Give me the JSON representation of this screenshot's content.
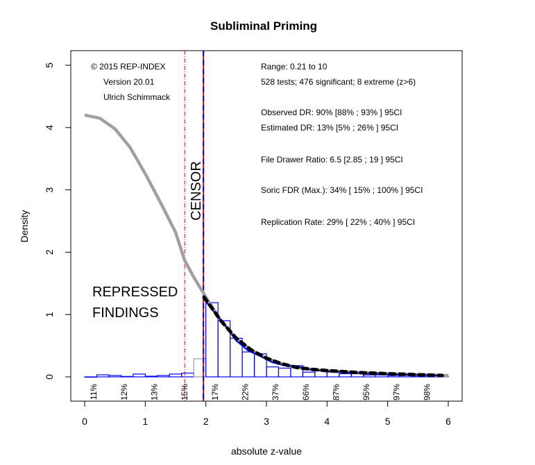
{
  "chart_data": {
    "type": "bar",
    "title": "Subliminal Priming",
    "xlabel": "absolute z-value",
    "ylabel": "Density",
    "xlim": [
      0,
      6
    ],
    "ylim": [
      0,
      5
    ],
    "x_ticks": [
      "0",
      "1",
      "2",
      "3",
      "4",
      "5",
      "6"
    ],
    "y_ticks": [
      "0",
      "1",
      "2",
      "3",
      "4",
      "5"
    ],
    "grid": false,
    "histogram": {
      "bin_width": 0.2,
      "bin_starts": [
        0,
        0.2,
        0.4,
        0.6,
        0.8,
        1.0,
        1.2,
        1.4,
        1.6,
        1.8,
        2.0,
        2.2,
        2.4,
        2.6,
        2.8,
        3.0,
        3.2,
        3.4,
        3.6,
        3.8,
        4.0,
        4.2,
        4.4,
        4.6,
        4.8,
        5.0,
        5.2,
        5.4,
        5.6,
        5.8
      ],
      "density": [
        0.0,
        0.033,
        0.022,
        0.007,
        0.045,
        0.011,
        0.022,
        0.045,
        0.06,
        0.29,
        1.19,
        0.9,
        0.62,
        0.4,
        0.37,
        0.16,
        0.14,
        0.18,
        0.075,
        0.11,
        0.075,
        0.05,
        0.05,
        0.03,
        0.03,
        0.02,
        0.02,
        0.015,
        0.01,
        0.01
      ],
      "color_significant": "#0000ff",
      "color_nonsignificant": "#0000ff",
      "color_z18_20": "#999999"
    },
    "curves": [
      {
        "role": "estimated-total",
        "color": "#a0a0a0",
        "style": "solid",
        "x": [
          0,
          0.25,
          0.5,
          0.75,
          1.0,
          1.25,
          1.5,
          1.65,
          1.8,
          2.0,
          2.25,
          2.5,
          2.75,
          3.0,
          3.25,
          3.5,
          3.75,
          4.0,
          4.5,
          5.0,
          5.5,
          6.0
        ],
        "y": [
          4.2,
          4.15,
          3.98,
          3.68,
          3.26,
          2.8,
          2.32,
          1.87,
          1.6,
          1.28,
          0.9,
          0.62,
          0.43,
          0.3,
          0.21,
          0.15,
          0.12,
          0.1,
          0.07,
          0.05,
          0.035,
          0.02
        ]
      },
      {
        "role": "fitted-significant",
        "color": "#000000",
        "style": "dashed",
        "x": [
          1.97,
          2.25,
          2.5,
          2.75,
          3.0,
          3.25,
          3.5,
          3.75,
          4.0,
          4.5,
          5.0,
          5.5,
          5.9
        ],
        "y": [
          1.28,
          0.9,
          0.62,
          0.43,
          0.3,
          0.21,
          0.15,
          0.12,
          0.1,
          0.07,
          0.05,
          0.035,
          0.022
        ]
      },
      {
        "role": "kernel-density",
        "color": "#0000ff",
        "style": "solid",
        "x": [
          1.97,
          2.1,
          2.3,
          2.5,
          2.7,
          2.9,
          3.1,
          3.3,
          3.5,
          3.7,
          4.0,
          4.5,
          5.0,
          5.5,
          5.9
        ],
        "y": [
          1.25,
          1.08,
          0.85,
          0.58,
          0.42,
          0.33,
          0.23,
          0.18,
          0.17,
          0.12,
          0.09,
          0.06,
          0.04,
          0.03,
          0.02
        ]
      }
    ],
    "vlines": [
      {
        "x": 1.96,
        "color": "#ff0000",
        "style": "solid"
      },
      {
        "x": 1.96,
        "color": "#0000ff",
        "style": "dashed"
      },
      {
        "x": 1.65,
        "color": "#ff0000",
        "style": "dotdash"
      }
    ],
    "power_labels": {
      "x": [
        0.15,
        0.65,
        1.15,
        1.65,
        2.15,
        2.65,
        3.15,
        3.65,
        4.15,
        4.65,
        5.15,
        5.65
      ],
      "labels": [
        "11%",
        "12%",
        "13%",
        "15%",
        "17%",
        "22%",
        "37%",
        "66%",
        "87%",
        "95%",
        "97%",
        "98%"
      ]
    },
    "annotations": {
      "credit": [
        "© 2015 REP-INDEX",
        "Version 20.01",
        "Ulrich Schimmack"
      ],
      "stats": [
        "Range: 0.21 to 10",
        "528 tests; 476 significant; 8 extreme (z>6)",
        "Observed DR: 90% [88% ; 93% ] 95CI",
        "Estimated DR: 13% [5% ; 26% ] 95CI",
        "File Drawer Ratio: 6.5 [2.85 ; 19 ] 95CI",
        "Soric FDR (Max.): 34% [ 15% ; 100% ] 95CI",
        "Replication Rate: 29% [ 22% ; 40% ] 95CI"
      ],
      "censor": "CENSOR",
      "repressed": [
        "REPRESSED",
        "FINDINGS"
      ]
    }
  }
}
